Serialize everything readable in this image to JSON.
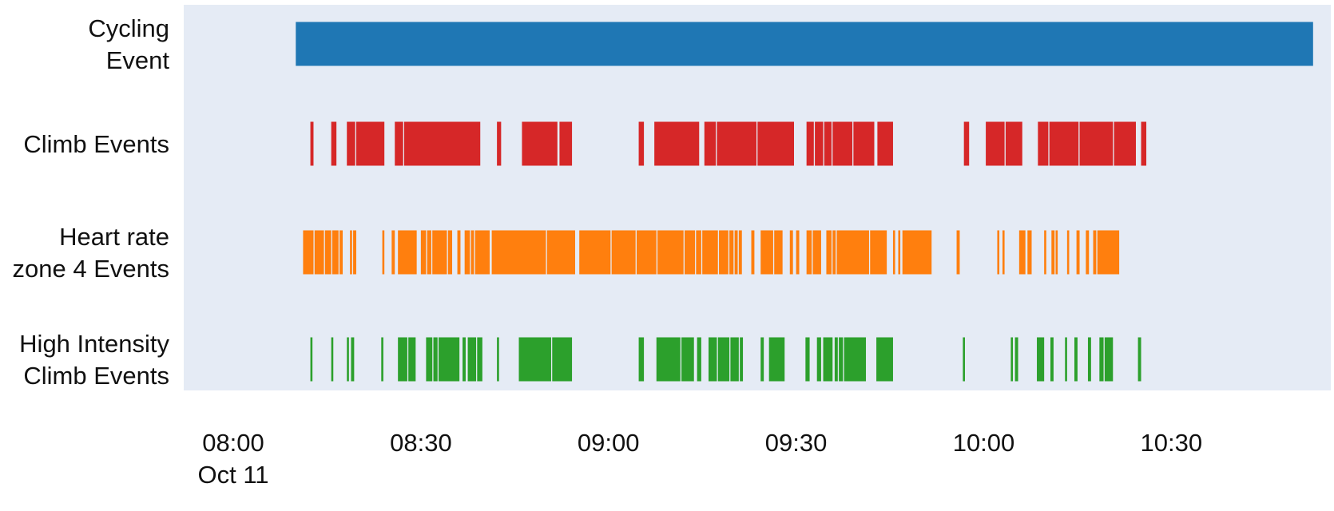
{
  "chart_data": {
    "type": "timeline",
    "background": "#e5ebf5",
    "x_axis": {
      "type": "time",
      "range": [
        "08:00",
        "10:53"
      ],
      "ticks": [
        {
          "value": "08:00",
          "label": "08:00",
          "sublabel": "Oct 11"
        },
        {
          "value": "08:30",
          "label": "08:30",
          "sublabel": ""
        },
        {
          "value": "09:00",
          "label": "09:00",
          "sublabel": ""
        },
        {
          "value": "09:30",
          "label": "09:30",
          "sublabel": ""
        },
        {
          "value": "10:00",
          "label": "10:00",
          "sublabel": ""
        },
        {
          "value": "10:30",
          "label": "10:30",
          "sublabel": ""
        }
      ]
    },
    "series": [
      {
        "name": "Cycling Event",
        "label_lines": [
          "Cycling",
          "Event"
        ],
        "color": "#1f77b4",
        "intervals": [
          [
            "08:10:00",
            "10:52:40"
          ]
        ]
      },
      {
        "name": "Climb Events",
        "label_lines": [
          "Climb Events"
        ],
        "color": "#d62728",
        "intervals": [
          [
            "08:12:20",
            "08:12:50"
          ],
          [
            "08:15:40",
            "08:16:30"
          ],
          [
            "08:18:10",
            "08:19:30"
          ],
          [
            "08:19:40",
            "08:24:10"
          ],
          [
            "08:25:50",
            "08:27:10"
          ],
          [
            "08:27:20",
            "08:39:30"
          ],
          [
            "08:42:10",
            "08:42:50"
          ],
          [
            "08:46:10",
            "08:51:50"
          ],
          [
            "08:52:10",
            "08:54:10"
          ],
          [
            "09:04:50",
            "09:05:40"
          ],
          [
            "09:07:20",
            "09:14:30"
          ],
          [
            "09:15:20",
            "09:17:10"
          ],
          [
            "09:17:20",
            "09:23:40"
          ],
          [
            "09:23:50",
            "09:29:40"
          ],
          [
            "09:31:40",
            "09:32:50"
          ],
          [
            "09:33:00",
            "09:34:20"
          ],
          [
            "09:34:30",
            "09:35:40"
          ],
          [
            "09:35:50",
            "09:39:00"
          ],
          [
            "09:39:10",
            "09:42:30"
          ],
          [
            "09:43:00",
            "09:45:30"
          ],
          [
            "09:56:50",
            "09:57:40"
          ],
          [
            "10:00:20",
            "10:03:20"
          ],
          [
            "10:03:30",
            "10:06:10"
          ],
          [
            "10:08:40",
            "10:10:20"
          ],
          [
            "10:10:30",
            "10:15:10"
          ],
          [
            "10:15:20",
            "10:20:40"
          ],
          [
            "10:20:50",
            "10:24:20"
          ],
          [
            "10:25:10",
            "10:26:00"
          ]
        ]
      },
      {
        "name": "Heart rate zone 4 Events",
        "label_lines": [
          "Heart rate",
          "zone 4 Events"
        ],
        "color": "#ff7f0e",
        "intervals": [
          [
            "08:11:10",
            "08:12:50"
          ],
          [
            "08:13:00",
            "08:14:30"
          ],
          [
            "08:14:40",
            "08:15:40"
          ],
          [
            "08:15:50",
            "08:16:50"
          ],
          [
            "08:17:00",
            "08:17:30"
          ],
          [
            "08:18:40",
            "08:19:00"
          ],
          [
            "08:19:10",
            "08:19:40"
          ],
          [
            "08:23:50",
            "08:24:10"
          ],
          [
            "08:25:20",
            "08:25:50"
          ],
          [
            "08:26:20",
            "08:29:20"
          ],
          [
            "08:30:00",
            "08:30:50"
          ],
          [
            "08:31:00",
            "08:31:40"
          ],
          [
            "08:31:50",
            "08:34:10"
          ],
          [
            "08:34:20",
            "08:35:00"
          ],
          [
            "08:35:50",
            "08:36:20"
          ],
          [
            "08:37:00",
            "08:37:50"
          ],
          [
            "08:38:00",
            "08:38:30"
          ],
          [
            "08:38:40",
            "08:41:00"
          ],
          [
            "08:41:20",
            "08:50:00"
          ],
          [
            "08:50:10",
            "08:54:40"
          ],
          [
            "08:55:20",
            "09:00:20"
          ],
          [
            "09:00:30",
            "09:04:20"
          ],
          [
            "09:04:30",
            "09:07:40"
          ],
          [
            "09:07:50",
            "09:12:00"
          ],
          [
            "09:12:10",
            "09:13:50"
          ],
          [
            "09:14:00",
            "09:14:50"
          ],
          [
            "09:15:00",
            "09:17:30"
          ],
          [
            "09:17:40",
            "09:19:10"
          ],
          [
            "09:19:20",
            "09:20:00"
          ],
          [
            "09:20:10",
            "09:20:40"
          ],
          [
            "09:20:50",
            "09:21:20"
          ],
          [
            "09:22:50",
            "09:23:20"
          ],
          [
            "09:24:20",
            "09:26:20"
          ],
          [
            "09:26:30",
            "09:27:50"
          ],
          [
            "09:29:00",
            "09:29:30"
          ],
          [
            "09:30:00",
            "09:30:30"
          ],
          [
            "09:31:40",
            "09:32:30"
          ],
          [
            "09:32:40",
            "09:34:00"
          ],
          [
            "09:34:50",
            "09:35:40"
          ],
          [
            "09:35:50",
            "09:36:20"
          ],
          [
            "09:36:30",
            "09:41:40"
          ],
          [
            "09:41:50",
            "09:44:30"
          ],
          [
            "09:45:30",
            "09:45:50"
          ],
          [
            "09:46:20",
            "09:46:40"
          ],
          [
            "09:47:00",
            "09:51:40"
          ],
          [
            "09:55:40",
            "09:56:10"
          ],
          [
            "10:02:10",
            "10:02:30"
          ],
          [
            "10:03:00",
            "10:03:20"
          ],
          [
            "10:05:40",
            "10:06:40"
          ],
          [
            "10:07:00",
            "10:07:40"
          ],
          [
            "10:09:40",
            "10:10:00"
          ],
          [
            "10:10:50",
            "10:11:20"
          ],
          [
            "10:11:30",
            "10:11:50"
          ],
          [
            "10:13:20",
            "10:13:40"
          ],
          [
            "10:14:50",
            "10:15:20"
          ],
          [
            "10:16:20",
            "10:16:50"
          ],
          [
            "10:17:30",
            "10:18:00"
          ],
          [
            "10:18:10",
            "10:21:40"
          ]
        ]
      },
      {
        "name": "High Intensity Climb Events",
        "label_lines": [
          "High Intensity",
          "Climb Events"
        ],
        "color": "#2ca02c",
        "intervals": [
          [
            "08:12:20",
            "08:12:40"
          ],
          [
            "08:15:40",
            "08:16:00"
          ],
          [
            "08:18:10",
            "08:18:30"
          ],
          [
            "08:18:50",
            "08:19:20"
          ],
          [
            "08:23:40",
            "08:24:00"
          ],
          [
            "08:26:20",
            "08:27:50"
          ],
          [
            "08:28:00",
            "08:29:10"
          ],
          [
            "08:30:50",
            "08:31:50"
          ],
          [
            "08:32:00",
            "08:32:40"
          ],
          [
            "08:32:50",
            "08:36:10"
          ],
          [
            "08:36:40",
            "08:37:10"
          ],
          [
            "08:37:30",
            "08:38:50"
          ],
          [
            "08:39:00",
            "08:39:50"
          ],
          [
            "08:42:10",
            "08:42:30"
          ],
          [
            "08:45:40",
            "08:50:50"
          ],
          [
            "08:51:00",
            "08:54:10"
          ],
          [
            "09:04:50",
            "09:05:40"
          ],
          [
            "09:07:40",
            "09:11:30"
          ],
          [
            "09:11:40",
            "09:13:40"
          ],
          [
            "09:14:10",
            "09:14:50"
          ],
          [
            "09:16:00",
            "09:17:20"
          ],
          [
            "09:17:30",
            "09:19:20"
          ],
          [
            "09:19:30",
            "09:20:50"
          ],
          [
            "09:21:00",
            "09:21:30"
          ],
          [
            "09:24:20",
            "09:24:50"
          ],
          [
            "09:25:40",
            "09:28:10"
          ],
          [
            "09:31:30",
            "09:32:10"
          ],
          [
            "09:33:20",
            "09:34:00"
          ],
          [
            "09:34:20",
            "09:35:50"
          ],
          [
            "09:36:10",
            "09:36:40"
          ],
          [
            "09:36:50",
            "09:37:30"
          ],
          [
            "09:37:40",
            "09:41:10"
          ],
          [
            "09:42:50",
            "09:45:30"
          ],
          [
            "09:56:40",
            "09:57:00"
          ],
          [
            "10:04:20",
            "10:04:40"
          ],
          [
            "10:05:00",
            "10:05:30"
          ],
          [
            "10:08:30",
            "10:09:40"
          ],
          [
            "10:10:40",
            "10:11:10"
          ],
          [
            "10:13:00",
            "10:13:20"
          ],
          [
            "10:14:30",
            "10:15:00"
          ],
          [
            "10:16:40",
            "10:17:10"
          ],
          [
            "10:18:30",
            "10:19:10"
          ],
          [
            "10:19:20",
            "10:20:40"
          ],
          [
            "10:24:40",
            "10:25:10"
          ]
        ]
      }
    ]
  }
}
